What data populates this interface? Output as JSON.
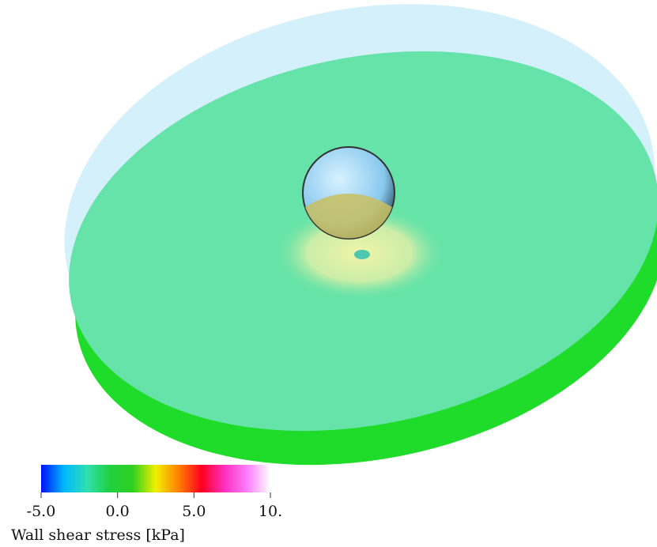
{
  "colorbar": {
    "title": "Wall shear stress [kPa]",
    "lim": [
      -5,
      10
    ],
    "ticks": [
      {
        "value": -5,
        "label": "-5.0"
      },
      {
        "value": 0,
        "label": "0.0"
      },
      {
        "value": 5,
        "label": "5.0"
      },
      {
        "value": 10,
        "label": "10."
      }
    ],
    "colors": [
      "#0010ff",
      "#00b8ff",
      "#30e0b0",
      "#20d040",
      "#30d020",
      "#f0f000",
      "#ff8000",
      "#ff0020",
      "#ff30c0",
      "#ff80ff",
      "#ffffff"
    ]
  }
}
